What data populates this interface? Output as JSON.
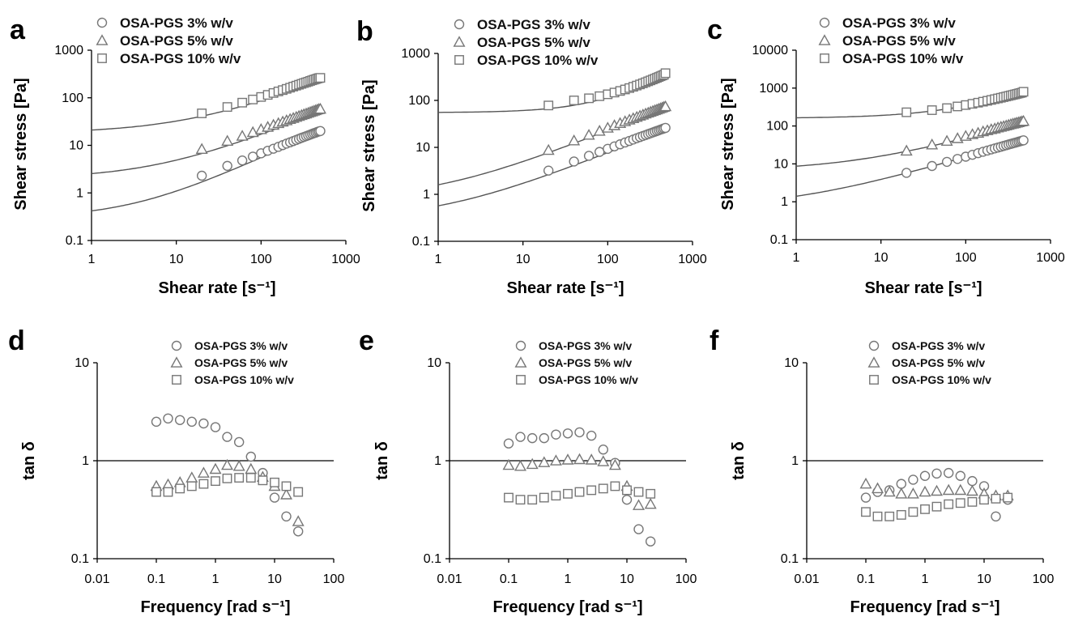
{
  "chart_data": [
    {
      "panel": "a",
      "type": "scatter",
      "xlabel": "Shear rate [s⁻¹]",
      "ylabel": "Shear stress [Pa]",
      "xscale": "log",
      "yscale": "log",
      "xlim": [
        1,
        1000
      ],
      "ylim": [
        0.1,
        1000
      ],
      "xticks": [
        "1",
        "10",
        "100",
        "1000"
      ],
      "yticks": [
        "0.1",
        "1",
        "10",
        "100",
        "1000"
      ],
      "legend_position": "top",
      "series": [
        {
          "name": "OSA-PGS 3% w/v",
          "marker": "circle",
          "fit": {
            "tau0": 0.3,
            "K": 0.12,
            "n": 0.82
          },
          "x": [
            20,
            40,
            60,
            80,
            100,
            120,
            140,
            160,
            180,
            200,
            220,
            240,
            260,
            280,
            300,
            320,
            340,
            360,
            380,
            400,
            420,
            440,
            460,
            480,
            500
          ],
          "y": [
            2.3,
            3.7,
            4.8,
            5.8,
            6.8,
            7.7,
            8.5,
            9.3,
            10.1,
            10.9,
            11.6,
            12.3,
            13.0,
            13.7,
            14.4,
            15.0,
            15.6,
            16.2,
            16.8,
            17.4,
            18.0,
            18.5,
            19.1,
            19.6,
            20.0
          ]
        },
        {
          "name": "OSA-PGS 5% w/v",
          "marker": "triangle",
          "fit": {
            "tau0": 2.0,
            "K": 0.55,
            "n": 0.72
          },
          "x": [
            20,
            40,
            60,
            80,
            100,
            120,
            140,
            160,
            180,
            200,
            220,
            240,
            260,
            280,
            300,
            320,
            340,
            360,
            380,
            400,
            420,
            440,
            460,
            480,
            500
          ],
          "y": [
            8.3,
            12.3,
            15.7,
            18.8,
            21.6,
            24.2,
            26.7,
            29.0,
            31.2,
            33.3,
            35.4,
            37.3,
            39.2,
            41.1,
            42.9,
            44.6,
            46.3,
            48.0,
            49.6,
            51.2,
            52.8,
            54.3,
            55.9,
            57.3,
            58.0
          ]
        },
        {
          "name": "OSA-PGS 10% w/v",
          "marker": "square",
          "fit": {
            "tau0": 18.0,
            "K": 3.0,
            "n": 0.68
          },
          "x": [
            20,
            40,
            60,
            80,
            100,
            120,
            140,
            160,
            180,
            200,
            220,
            240,
            260,
            280,
            300,
            320,
            340,
            360,
            380,
            400,
            420,
            440,
            460,
            480,
            500
          ],
          "y": [
            47,
            64,
            79,
            92,
            104,
            115,
            126,
            136,
            145,
            154,
            163,
            172,
            180,
            188,
            196,
            204,
            211,
            218,
            226,
            233,
            240,
            246,
            253,
            259,
            262
          ]
        }
      ]
    },
    {
      "panel": "b",
      "type": "scatter",
      "xlabel": "Shear rate [s⁻¹]",
      "ylabel": "Shear stress [Pa]",
      "xscale": "log",
      "yscale": "log",
      "xlim": [
        1,
        1000
      ],
      "ylim": [
        0.1,
        1000
      ],
      "xticks": [
        "1",
        "10",
        "100",
        "1000"
      ],
      "yticks": [
        "0.1",
        "1",
        "10",
        "100",
        "1000"
      ],
      "legend_position": "top",
      "series": [
        {
          "name": "OSA-PGS 3% w/v",
          "marker": "circle",
          "fit": {
            "tau0": 0.3,
            "K": 0.27,
            "n": 0.72
          },
          "x": [
            20,
            40,
            60,
            80,
            100,
            120,
            140,
            160,
            180,
            200,
            220,
            240,
            260,
            280,
            300,
            320,
            340,
            360,
            380,
            400,
            420,
            440,
            460,
            480
          ],
          "y": [
            3.2,
            5.0,
            6.6,
            8.0,
            9.3,
            10.5,
            11.6,
            12.7,
            13.7,
            14.7,
            15.7,
            16.6,
            17.5,
            18.3,
            19.2,
            20.0,
            20.8,
            21.6,
            22.4,
            23.1,
            23.9,
            24.6,
            25.3,
            26.0
          ]
        },
        {
          "name": "OSA-PGS 5% w/v",
          "marker": "triangle",
          "fit": {
            "tau0": 0.8,
            "K": 0.8,
            "n": 0.72
          },
          "x": [
            20,
            40,
            60,
            80,
            100,
            120,
            140,
            160,
            180,
            200,
            220,
            240,
            260,
            280,
            300,
            320,
            340,
            360,
            380,
            400,
            420,
            440,
            460,
            480
          ],
          "y": [
            8.7,
            13.9,
            18.3,
            22.3,
            25.9,
            29.3,
            32.6,
            35.6,
            38.6,
            41.4,
            44.1,
            46.8,
            49.3,
            51.8,
            54.3,
            56.6,
            59.0,
            61.2,
            63.4,
            65.6,
            67.8,
            69.9,
            72.0,
            74.0
          ]
        },
        {
          "name": "OSA-PGS 10% w/v",
          "marker": "square",
          "fit": {
            "tau0": 55.0,
            "K": 0.6,
            "n": 1.0
          },
          "x": [
            20,
            40,
            60,
            80,
            100,
            120,
            140,
            160,
            180,
            200,
            220,
            240,
            260,
            280,
            300,
            320,
            340,
            360,
            380,
            400,
            420,
            440,
            460,
            480
          ],
          "y": [
            78,
            100,
            111,
            123,
            135,
            147,
            159,
            171,
            183,
            195,
            207,
            219,
            231,
            243,
            255,
            267,
            279,
            291,
            303,
            315,
            327,
            339,
            351,
            380
          ]
        }
      ]
    },
    {
      "panel": "c",
      "type": "scatter",
      "xlabel": "Shear rate [s⁻¹]",
      "ylabel": "Shear stress [Pa]",
      "xscale": "log",
      "yscale": "log",
      "xlim": [
        1,
        1000
      ],
      "ylim": [
        0.1,
        10000
      ],
      "xticks": [
        "1",
        "10",
        "100",
        "1000"
      ],
      "yticks": [
        "0.1",
        "1",
        "10",
        "100",
        "1000",
        "10000"
      ],
      "legend_position": "top",
      "series": [
        {
          "name": "OSA-PGS 3% w/v",
          "marker": "circle",
          "fit": {
            "tau0": 0.7,
            "K": 0.7,
            "n": 0.66
          },
          "x": [
            20,
            40,
            60,
            80,
            100,
            120,
            140,
            160,
            180,
            200,
            220,
            240,
            260,
            280,
            300,
            320,
            340,
            360,
            380,
            400,
            420,
            440,
            460,
            480
          ],
          "y": [
            5.8,
            8.8,
            11.3,
            13.5,
            15.5,
            17.4,
            19.2,
            20.9,
            22.5,
            24.1,
            25.6,
            27.0,
            28.4,
            29.8,
            31.1,
            32.4,
            33.7,
            34.9,
            36.1,
            37.3,
            38.5,
            39.6,
            40.7,
            41.8
          ]
        },
        {
          "name": "OSA-PGS 5% w/v",
          "marker": "triangle",
          "fit": {
            "tau0": 6.5,
            "K": 2.2,
            "n": 0.64
          },
          "x": [
            20,
            40,
            60,
            80,
            100,
            120,
            140,
            160,
            180,
            200,
            220,
            240,
            260,
            280,
            300,
            320,
            340,
            360,
            380,
            400,
            420,
            440,
            460,
            480
          ],
          "y": [
            22,
            32,
            40,
            47,
            54,
            60,
            65,
            71,
            76,
            81,
            85,
            90,
            94,
            98,
            102,
            106,
            110,
            114,
            117,
            121,
            124,
            128,
            131,
            134
          ]
        },
        {
          "name": "OSA-PGS 10% w/v",
          "marker": "square",
          "fit": {
            "tau0": 160,
            "K": 5.0,
            "n": 0.78
          },
          "x": [
            20,
            40,
            60,
            80,
            100,
            120,
            140,
            160,
            180,
            200,
            220,
            240,
            260,
            280,
            300,
            320,
            340,
            360,
            380,
            400,
            420,
            440,
            460,
            480
          ],
          "y": [
            230,
            262,
            296,
            328,
            357,
            385,
            412,
            438,
            463,
            487,
            511,
            534,
            556,
            578,
            600,
            621,
            642,
            662,
            682,
            702,
            722,
            741,
            760,
            800
          ]
        }
      ]
    },
    {
      "panel": "d",
      "type": "scatter",
      "xlabel": "Frequency [rad s⁻¹]",
      "ylabel": "tan δ",
      "xscale": "log",
      "yscale": "log",
      "xlim": [
        0.01,
        100
      ],
      "ylim": [
        0.1,
        10
      ],
      "xticks": [
        "0.01",
        "0.1",
        "1",
        "10",
        "100"
      ],
      "yticks": [
        "0.1",
        "1",
        "10"
      ],
      "reference_line": 1,
      "legend_position": "top",
      "series": [
        {
          "name": "OSA-PGS 3% w/v",
          "marker": "circle",
          "x": [
            0.1,
            0.158,
            0.251,
            0.398,
            0.631,
            1.0,
            1.58,
            2.51,
            3.98,
            6.31,
            10,
            15.8,
            25.1
          ],
          "y": [
            2.5,
            2.7,
            2.6,
            2.5,
            2.4,
            2.2,
            1.75,
            1.55,
            1.1,
            0.75,
            0.42,
            0.27,
            0.19
          ]
        },
        {
          "name": "OSA-PGS 5% w/v",
          "marker": "triangle",
          "x": [
            0.1,
            0.158,
            0.251,
            0.398,
            0.631,
            1.0,
            1.58,
            2.51,
            3.98,
            6.31,
            10,
            15.8,
            25.1
          ],
          "y": [
            0.55,
            0.57,
            0.6,
            0.67,
            0.75,
            0.82,
            0.9,
            0.88,
            0.82,
            0.68,
            0.55,
            0.45,
            0.24
          ]
        },
        {
          "name": "OSA-PGS 10% w/v",
          "marker": "square",
          "x": [
            0.1,
            0.158,
            0.251,
            0.398,
            0.631,
            1.0,
            1.58,
            2.51,
            3.98,
            6.31,
            10,
            15.8,
            25.1
          ],
          "y": [
            0.48,
            0.48,
            0.52,
            0.55,
            0.58,
            0.62,
            0.66,
            0.67,
            0.67,
            0.63,
            0.6,
            0.55,
            0.48
          ]
        }
      ]
    },
    {
      "panel": "e",
      "type": "scatter",
      "xlabel": "Frequency [rad s⁻¹]",
      "ylabel": "tan δ",
      "xscale": "log",
      "yscale": "log",
      "xlim": [
        0.01,
        100
      ],
      "ylim": [
        0.1,
        10
      ],
      "xticks": [
        "0.01",
        "0.1",
        "1",
        "10",
        "100"
      ],
      "yticks": [
        "0.1",
        "1",
        "10"
      ],
      "reference_line": 1,
      "legend_position": "top",
      "series": [
        {
          "name": "OSA-PGS 3% w/v",
          "marker": "circle",
          "x": [
            0.1,
            0.158,
            0.251,
            0.398,
            0.631,
            1.0,
            1.58,
            2.51,
            3.98,
            6.31,
            10,
            15.8,
            25.1
          ],
          "y": [
            1.5,
            1.75,
            1.7,
            1.7,
            1.85,
            1.9,
            1.95,
            1.8,
            1.3,
            0.95,
            0.4,
            0.2,
            0.15
          ]
        },
        {
          "name": "OSA-PGS 5% w/v",
          "marker": "triangle",
          "x": [
            0.1,
            0.158,
            0.251,
            0.398,
            0.631,
            1.0,
            1.58,
            2.51,
            3.98,
            6.31,
            10,
            15.8,
            25.1
          ],
          "y": [
            0.9,
            0.88,
            0.92,
            0.96,
            1.0,
            1.02,
            1.03,
            1.02,
            0.98,
            0.9,
            0.55,
            0.35,
            0.36
          ]
        },
        {
          "name": "OSA-PGS 10% w/v",
          "marker": "square",
          "x": [
            0.1,
            0.158,
            0.251,
            0.398,
            0.631,
            1.0,
            1.58,
            2.51,
            3.98,
            6.31,
            10,
            15.8,
            25.1
          ],
          "y": [
            0.42,
            0.4,
            0.4,
            0.42,
            0.44,
            0.46,
            0.48,
            0.5,
            0.52,
            0.55,
            0.5,
            0.48,
            0.46
          ]
        }
      ]
    },
    {
      "panel": "f",
      "type": "scatter",
      "xlabel": "Frequency [rad s⁻¹]",
      "ylabel": "tan δ",
      "xscale": "log",
      "yscale": "log",
      "xlim": [
        0.01,
        100
      ],
      "ylim": [
        0.1,
        10
      ],
      "xticks": [
        "0.01",
        "0.1",
        "1",
        "10",
        "100"
      ],
      "yticks": [
        "0.1",
        "1",
        "10"
      ],
      "reference_line": 1,
      "legend_position": "top",
      "series": [
        {
          "name": "OSA-PGS 3% w/v",
          "marker": "circle",
          "x": [
            0.1,
            0.158,
            0.251,
            0.398,
            0.631,
            1.0,
            1.58,
            2.51,
            3.98,
            6.31,
            10,
            15.8,
            25.1
          ],
          "y": [
            0.42,
            0.48,
            0.5,
            0.58,
            0.64,
            0.7,
            0.74,
            0.75,
            0.7,
            0.62,
            0.55,
            0.27,
            0.4
          ]
        },
        {
          "name": "OSA-PGS 5% w/v",
          "marker": "triangle",
          "x": [
            0.1,
            0.158,
            0.251,
            0.398,
            0.631,
            1.0,
            1.58,
            2.51,
            3.98,
            6.31,
            10,
            15.8,
            25.1
          ],
          "y": [
            0.58,
            0.52,
            0.48,
            0.46,
            0.46,
            0.48,
            0.49,
            0.5,
            0.5,
            0.49,
            0.46,
            0.44,
            0.44
          ]
        },
        {
          "name": "OSA-PGS 10% w/v",
          "marker": "square",
          "x": [
            0.1,
            0.158,
            0.251,
            0.398,
            0.631,
            1.0,
            1.58,
            2.51,
            3.98,
            6.31,
            10,
            15.8,
            25.1
          ],
          "y": [
            0.3,
            0.27,
            0.27,
            0.28,
            0.3,
            0.32,
            0.34,
            0.36,
            0.37,
            0.38,
            0.4,
            0.41,
            0.42
          ]
        }
      ]
    }
  ]
}
